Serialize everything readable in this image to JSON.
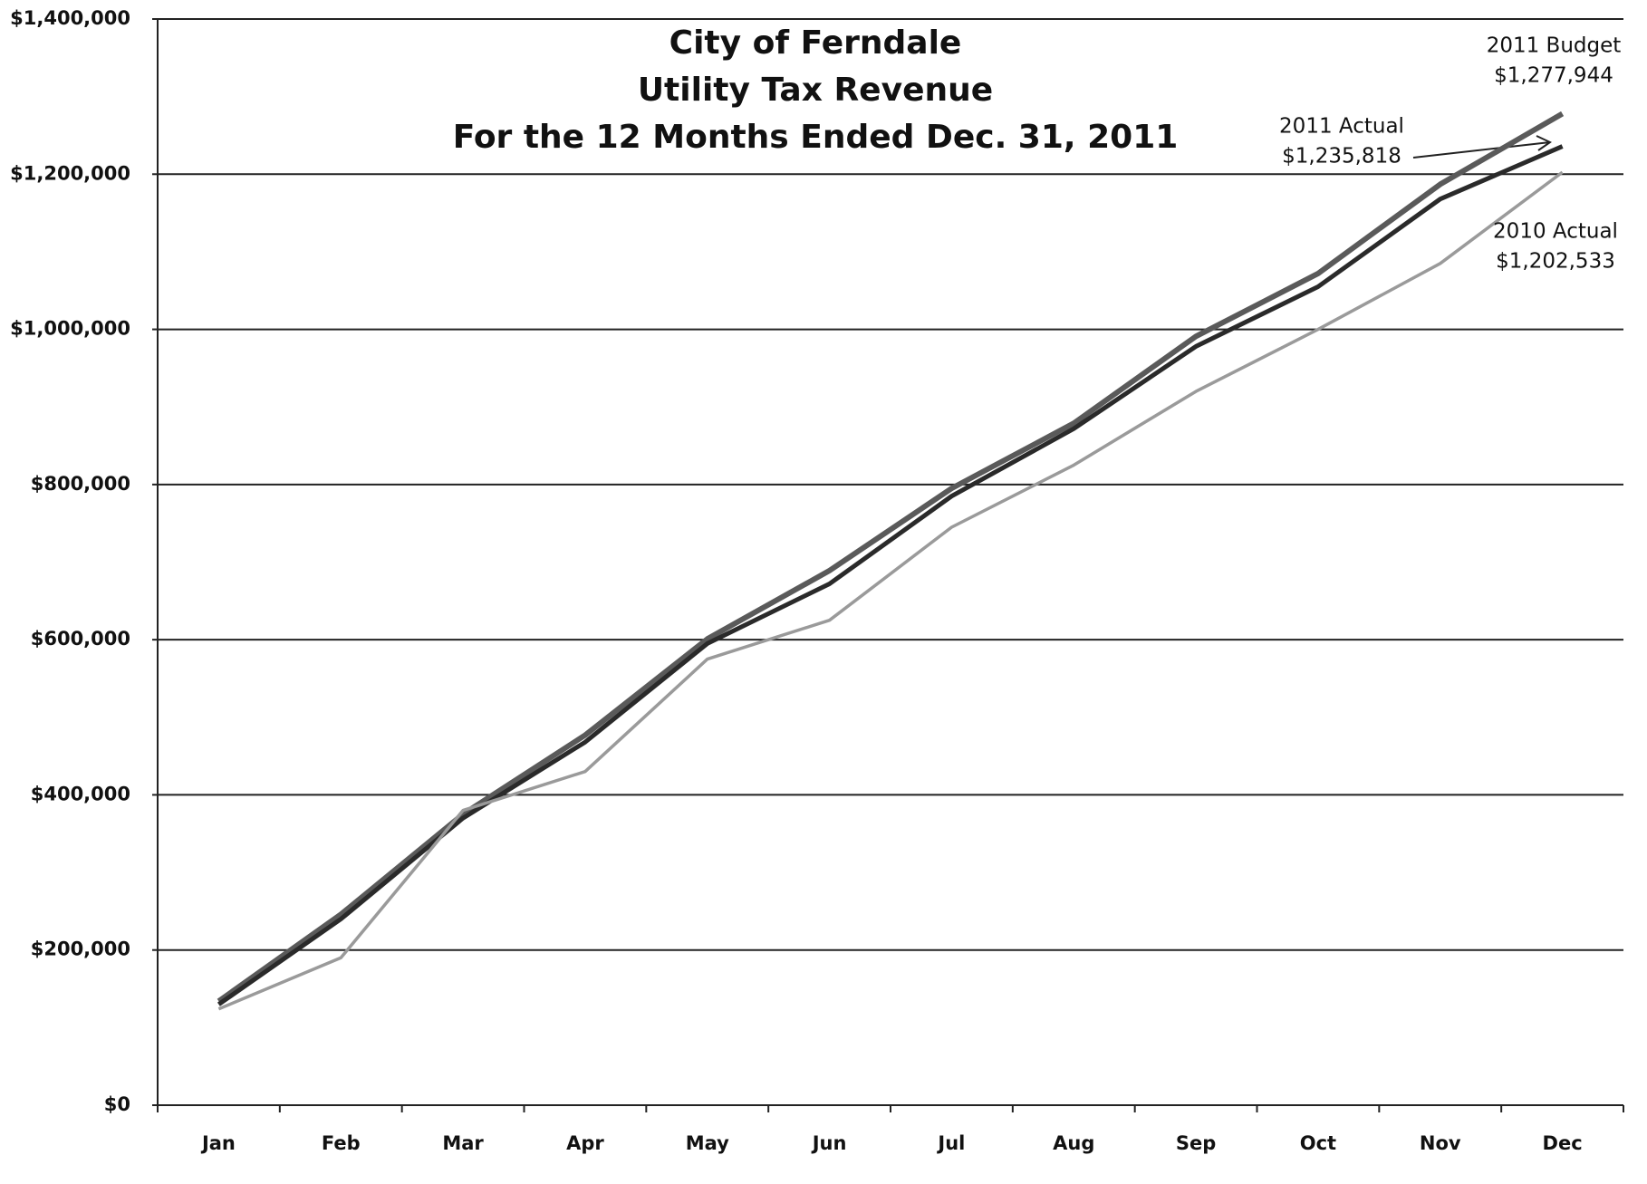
{
  "chart_data": {
    "type": "line",
    "title": [
      "City of Ferndale",
      "Utility Tax Revenue",
      "For the 12 Months Ended Dec. 31, 2011"
    ],
    "categories": [
      "Jan",
      "Feb",
      "Mar",
      "Apr",
      "May",
      "Jun",
      "Jul",
      "Aug",
      "Sep",
      "Oct",
      "Nov",
      "Dec"
    ],
    "series": [
      {
        "name": "2011 Budget",
        "color": "#5a5a5a",
        "values": [
          134000,
          246000,
          375000,
          477000,
          601000,
          689000,
          795000,
          879000,
          991000,
          1072000,
          1187000,
          1277944
        ],
        "value_labels": [
          null,
          null,
          null,
          null,
          null,
          null,
          null,
          null,
          null,
          null,
          null,
          "$1,277,944"
        ]
      },
      {
        "name": "2011 Actual",
        "color": "#2a2a2a",
        "values": [
          130000,
          240000,
          370000,
          468000,
          595000,
          672000,
          785000,
          872000,
          978000,
          1055000,
          1168000,
          1235818
        ],
        "value_labels": [
          null,
          null,
          null,
          null,
          null,
          null,
          null,
          null,
          null,
          null,
          null,
          "$1,235,818"
        ]
      },
      {
        "name": "2010 Actual",
        "color": "#9a9a9a",
        "values": [
          124000,
          190000,
          380000,
          430000,
          575000,
          625000,
          745000,
          825000,
          920000,
          1000000,
          1085000,
          1202533
        ],
        "value_labels": [
          null,
          null,
          null,
          null,
          null,
          null,
          null,
          null,
          null,
          null,
          null,
          "$1,202,533"
        ]
      }
    ],
    "ylim": [
      0,
      1400000
    ],
    "yticks": [
      {
        "value": 0,
        "label": "$0"
      },
      {
        "value": 200000,
        "label": "$200,000"
      },
      {
        "value": 400000,
        "label": "$400,000"
      },
      {
        "value": 600000,
        "label": "$600,000"
      },
      {
        "value": 800000,
        "label": "$800,000"
      },
      {
        "value": 1000000,
        "label": "$1,000,000"
      },
      {
        "value": 1200000,
        "label": "$1,200,000"
      },
      {
        "value": 1400000,
        "label": "$1,400,000"
      }
    ],
    "grid": true
  }
}
